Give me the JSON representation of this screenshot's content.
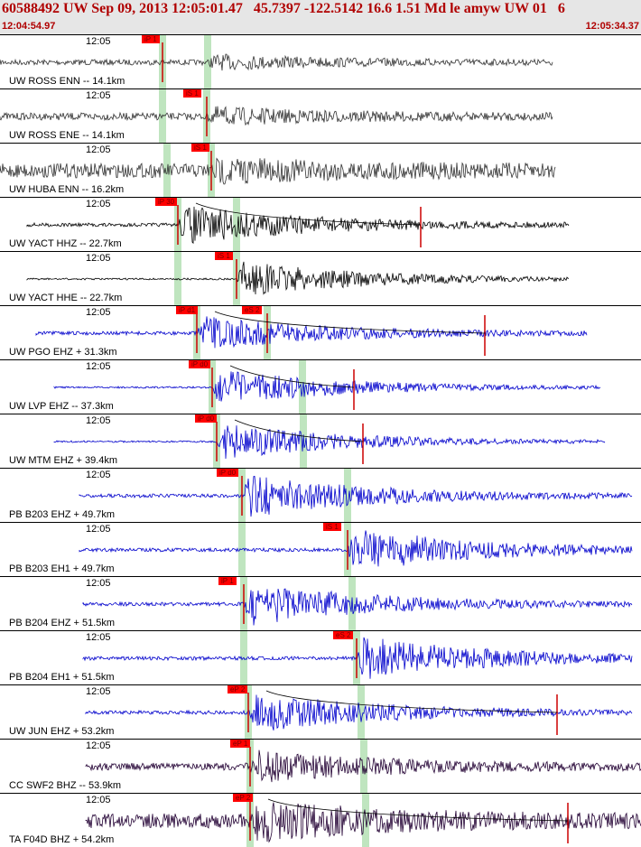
{
  "header": {
    "title": "60588492 UW Sep 09, 2013 12:05:01.47   45.7397 -122.5142 16.6 1.51 Md le amyw UW 01   6",
    "start_time": "12:04:54.97",
    "end_time": "12:05:34.37"
  },
  "time_tick_label": "12:05",
  "colors": {
    "header_bg": "#e6e6e6",
    "header_text": "#b00000",
    "pick": "#ff0000",
    "green_band": "#bfe5bf"
  },
  "traces": [
    {
      "station": "UW ROSS ENN -- 14.1km",
      "color": "#333333",
      "amp": 7,
      "noise": 3,
      "start": 0,
      "end": 612,
      "picks": [
        {
          "label": "iP 1",
          "x": 157
        }
      ],
      "green": [
        180,
        230
      ],
      "onset": 230,
      "coda_x": null
    },
    {
      "station": "UW ROSS ENE -- 14.1km",
      "color": "#333333",
      "amp": 8,
      "noise": 4,
      "start": 0,
      "end": 612,
      "picks": [
        {
          "label": "iS 1",
          "x": 203
        }
      ],
      "green": [
        180,
        229
      ],
      "onset": 229,
      "coda_x": null
    },
    {
      "station": "UW HUBA ENN -- 16.2km",
      "color": "#333333",
      "amp": 9,
      "noise": 8,
      "start": 0,
      "end": 615,
      "picks": [
        {
          "label": "iS 1",
          "x": 212
        }
      ],
      "green": [
        185,
        234
      ],
      "onset": 234,
      "coda_x": null
    },
    {
      "station": "UW YACT HHZ -- 22.7km",
      "color": "#000000",
      "amp": 22,
      "noise": 2,
      "start": 30,
      "end": 630,
      "picks": [
        {
          "label": "iP 30",
          "x": 172
        }
      ],
      "green": [
        197,
        262
      ],
      "onset": 197,
      "coda_x": 466
    },
    {
      "station": "UW YACT HHE -- 22.7km",
      "color": "#000000",
      "amp": 20,
      "noise": 1,
      "start": 30,
      "end": 630,
      "picks": [
        {
          "label": "iS 1",
          "x": 238
        }
      ],
      "green": [
        197,
        262
      ],
      "onset": 262,
      "coda_x": null
    },
    {
      "station": "UW PGO EHZ + 31.3km",
      "color": "#0000cc",
      "amp": 18,
      "noise": 2,
      "start": 40,
      "end": 650,
      "picks": [
        {
          "label": "iP d1",
          "x": 195
        },
        {
          "label": "eS 2",
          "x": 268
        }
      ],
      "green": [
        218,
        296
      ],
      "onset": 218,
      "coda_x": 537
    },
    {
      "station": "UW LVP EHZ -- 37.3km",
      "color": "#0000cc",
      "amp": 20,
      "noise": 1,
      "start": 60,
      "end": 665,
      "picks": [
        {
          "label": "iP d0",
          "x": 209
        }
      ],
      "green": [
        235,
        335
      ],
      "onset": 235,
      "coda_x": 392
    },
    {
      "station": "UW MTM EHZ + 39.4km",
      "color": "#0000cc",
      "amp": 20,
      "noise": 1,
      "start": 60,
      "end": 670,
      "picks": [
        {
          "label": "iP d0",
          "x": 216
        }
      ],
      "green": [
        240,
        336
      ],
      "onset": 240,
      "coda_x": 402
    },
    {
      "station": "PB B203 EHZ + 49.7km",
      "color": "#0000cc",
      "amp": 24,
      "noise": 2,
      "start": 88,
      "end": 700,
      "picks": [
        {
          "label": "iP d0",
          "x": 240
        }
      ],
      "green": [
        268,
        385
      ],
      "onset": 268,
      "coda_x": null
    },
    {
      "station": "PB B203 EH1 + 49.7km",
      "color": "#0000cc",
      "amp": 24,
      "noise": 2,
      "start": 88,
      "end": 700,
      "picks": [
        {
          "label": "iS 1",
          "x": 358
        }
      ],
      "green": [
        268,
        385
      ],
      "onset": 385,
      "coda_x": null
    },
    {
      "station": "PB B204 EHZ + 51.5km",
      "color": "#0000cc",
      "amp": 24,
      "noise": 2,
      "start": 92,
      "end": 700,
      "picks": [
        {
          "label": "iP 1",
          "x": 242
        }
      ],
      "green": [
        270,
        390
      ],
      "onset": 270,
      "coda_x": null
    },
    {
      "station": "PB B204 EH1 + 51.5km",
      "color": "#0000cc",
      "amp": 24,
      "noise": 2,
      "start": 92,
      "end": 700,
      "picks": [
        {
          "label": "eS 2",
          "x": 369
        }
      ],
      "green": [
        270,
        395
      ],
      "onset": 395,
      "coda_x": null
    },
    {
      "station": "UW JUN EHZ + 53.2km",
      "color": "#0000cc",
      "amp": 22,
      "noise": 2,
      "start": 95,
      "end": 700,
      "picks": [
        {
          "label": "eP 2",
          "x": 252
        }
      ],
      "green": [
        275,
        400
      ],
      "onset": 275,
      "coda_x": 617
    },
    {
      "station": "CC SWF2 BHZ -- 53.9km",
      "color": "#220033",
      "amp": 16,
      "noise": 4,
      "start": 95,
      "end": 710,
      "picks": [
        {
          "label": "eP 1",
          "x": 255
        }
      ],
      "green": [
        277,
        403
      ],
      "onset": 277,
      "coda_x": null
    },
    {
      "station": "TA F04D BHZ + 54.2km",
      "color": "#220033",
      "amp": 18,
      "noise": 8,
      "start": 95,
      "end": 710,
      "picks": [
        {
          "label": "eP 2",
          "x": 258
        }
      ],
      "green": [
        277,
        405
      ],
      "onset": 277,
      "coda_x": 629
    }
  ]
}
